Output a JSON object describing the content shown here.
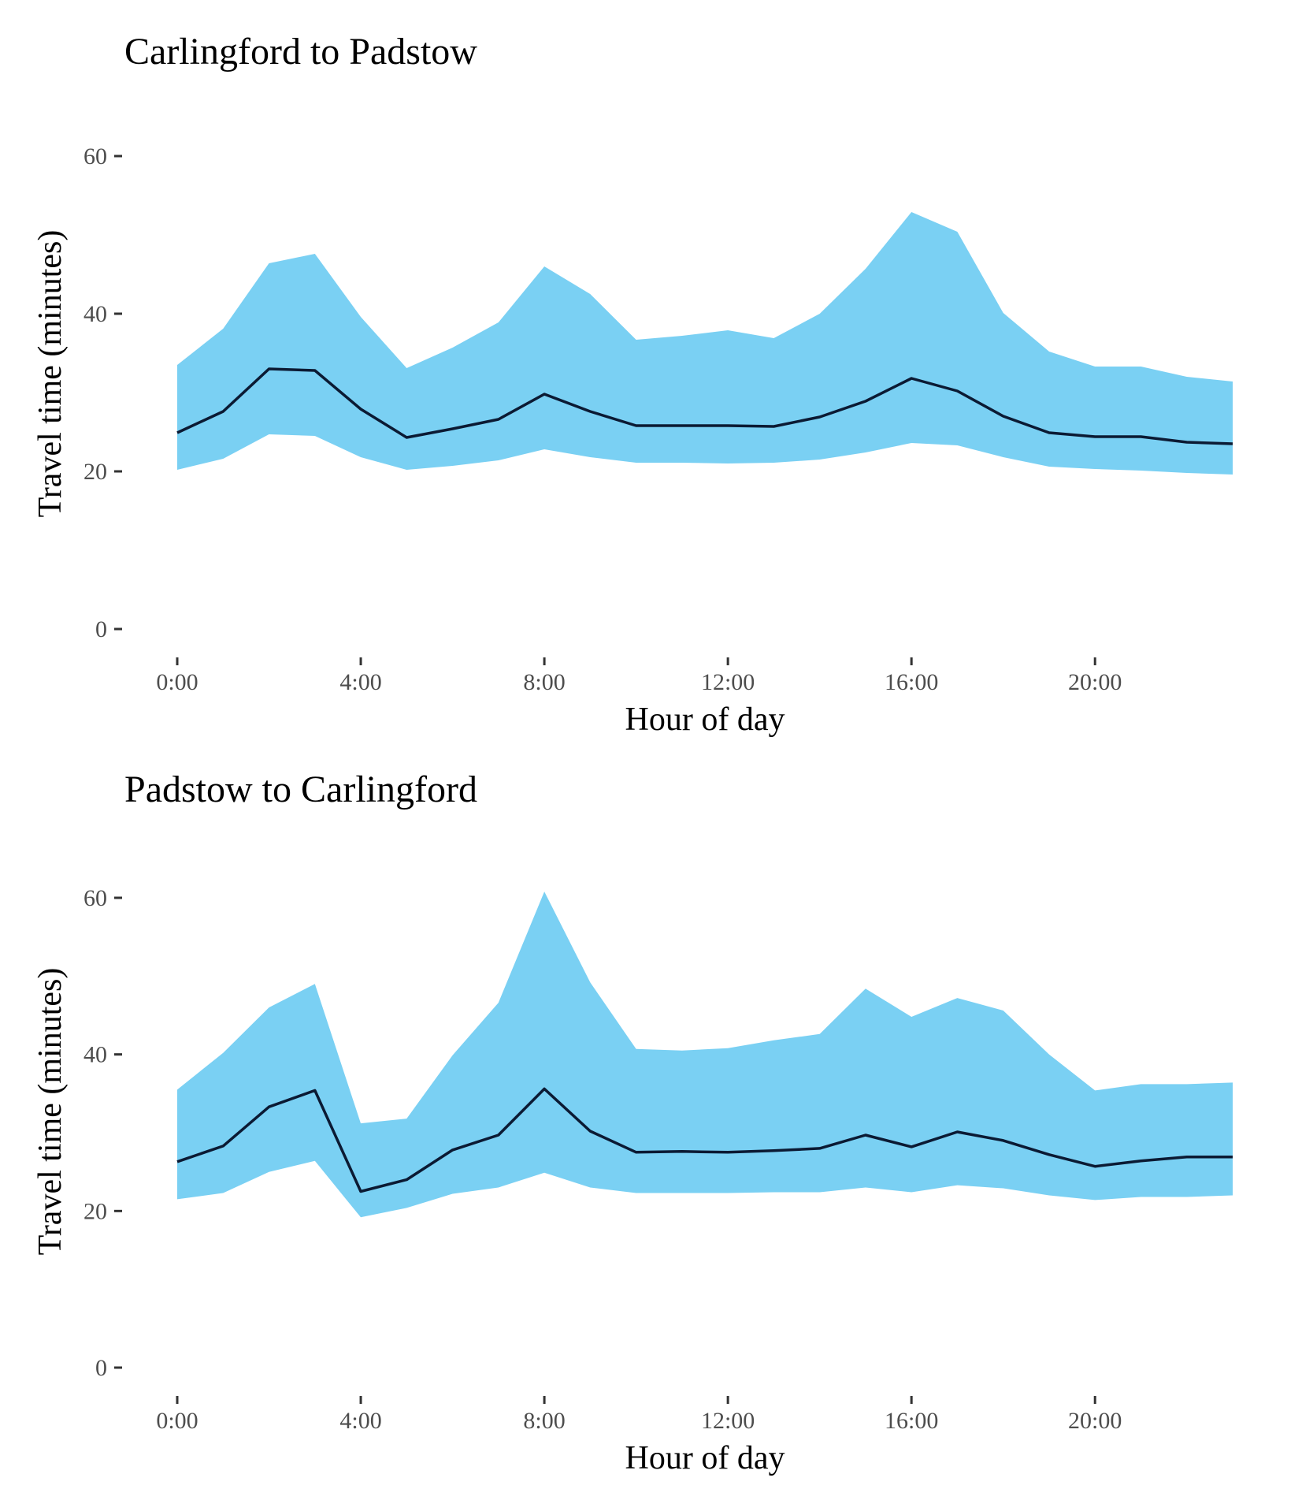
{
  "chart_data": [
    {
      "type": "area",
      "title": "Carlingford to Padstow",
      "xlabel": "Hour of day",
      "ylabel": "Travel time (minutes)",
      "ylim": [
        0,
        65
      ],
      "xlim": [
        0,
        23
      ],
      "x_ticks": [
        0,
        4,
        8,
        12,
        16,
        20
      ],
      "x_tick_labels": [
        "0:00",
        "4:00",
        "8:00",
        "12:00",
        "16:00",
        "20:00"
      ],
      "y_ticks": [
        0,
        20,
        40,
        60
      ],
      "y_tick_labels": [
        "0",
        "20",
        "40",
        "60"
      ],
      "grid": false,
      "colors": {
        "band": "#7ad0f3",
        "line": "#0b1a33"
      },
      "x": [
        0,
        1,
        2,
        3,
        4,
        5,
        6,
        7,
        8,
        9,
        10,
        11,
        12,
        13,
        14,
        15,
        16,
        17,
        18,
        19,
        20,
        21,
        22,
        23
      ],
      "series": [
        {
          "role": "median",
          "values": [
            24.9,
            27.6,
            33.0,
            32.8,
            27.9,
            24.3,
            25.4,
            26.6,
            29.8,
            27.6,
            25.8,
            25.8,
            25.8,
            25.7,
            26.9,
            28.9,
            31.8,
            30.2,
            27.0,
            24.9,
            24.4,
            24.4,
            23.7,
            23.5
          ]
        },
        {
          "role": "upper",
          "values": [
            33.5,
            38.1,
            46.4,
            47.6,
            39.6,
            33.1,
            35.7,
            38.9,
            46.0,
            42.5,
            36.7,
            37.2,
            37.9,
            36.9,
            40.0,
            45.7,
            52.9,
            50.4,
            40.1,
            35.2,
            33.3,
            33.3,
            32.0,
            31.4
          ]
        },
        {
          "role": "lower",
          "values": [
            20.2,
            21.6,
            24.7,
            24.5,
            21.8,
            20.2,
            20.7,
            21.4,
            22.8,
            21.8,
            21.1,
            21.1,
            21.0,
            21.1,
            21.5,
            22.4,
            23.6,
            23.3,
            21.8,
            20.6,
            20.3,
            20.1,
            19.8,
            19.6
          ]
        }
      ]
    },
    {
      "type": "area",
      "title": "Padstow to Carlingford",
      "xlabel": "Hour of day",
      "ylabel": "Travel time (minutes)",
      "ylim": [
        0,
        65
      ],
      "xlim": [
        0,
        23
      ],
      "x_ticks": [
        0,
        4,
        8,
        12,
        16,
        20
      ],
      "x_tick_labels": [
        "0:00",
        "4:00",
        "8:00",
        "12:00",
        "16:00",
        "20:00"
      ],
      "y_ticks": [
        0,
        20,
        40,
        60
      ],
      "y_tick_labels": [
        "0",
        "20",
        "40",
        "60"
      ],
      "grid": false,
      "colors": {
        "band": "#7ad0f3",
        "line": "#0b1a33"
      },
      "x": [
        0,
        1,
        2,
        3,
        4,
        5,
        6,
        7,
        8,
        9,
        10,
        11,
        12,
        13,
        14,
        15,
        16,
        17,
        18,
        19,
        20,
        21,
        22,
        23
      ],
      "series": [
        {
          "role": "median",
          "values": [
            26.3,
            28.3,
            33.3,
            35.4,
            22.5,
            24.0,
            27.8,
            29.7,
            35.6,
            30.2,
            27.5,
            27.6,
            27.5,
            27.7,
            28.0,
            29.7,
            28.2,
            30.1,
            29.0,
            27.2,
            25.7,
            26.4,
            26.9,
            26.9
          ]
        },
        {
          "role": "upper",
          "values": [
            35.5,
            40.2,
            46.0,
            49.0,
            31.2,
            31.8,
            39.9,
            46.6,
            60.8,
            49.2,
            40.7,
            40.5,
            40.8,
            41.8,
            42.6,
            48.4,
            44.8,
            47.2,
            45.6,
            40.0,
            35.4,
            36.2,
            36.2,
            36.4
          ]
        },
        {
          "role": "lower",
          "values": [
            21.5,
            22.3,
            25.0,
            26.4,
            19.2,
            20.4,
            22.2,
            23.0,
            24.9,
            23.0,
            22.3,
            22.3,
            22.3,
            22.4,
            22.4,
            23.0,
            22.4,
            23.3,
            22.9,
            22.0,
            21.4,
            21.8,
            21.8,
            22.0
          ]
        }
      ]
    }
  ]
}
